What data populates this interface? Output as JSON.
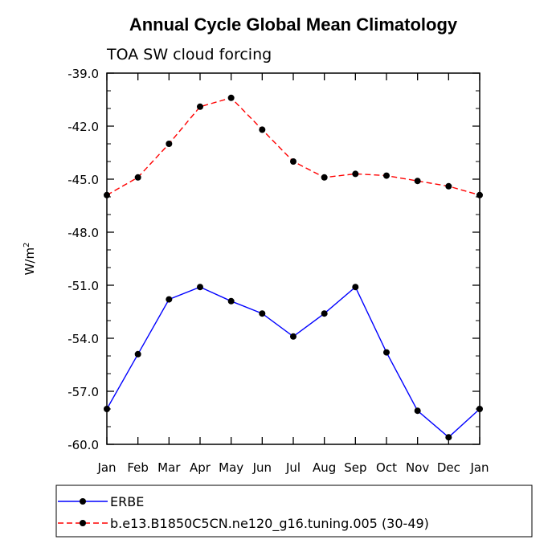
{
  "chart_data": {
    "type": "line",
    "title": "Annual Cycle Global Mean Climatology",
    "subtitle": "TOA SW cloud forcing",
    "ylabel": "W/m",
    "ylabel_superscript": "2",
    "xlabel": "",
    "categories": [
      "Jan",
      "Feb",
      "Mar",
      "Apr",
      "May",
      "Jun",
      "Jul",
      "Aug",
      "Sep",
      "Oct",
      "Nov",
      "Dec",
      "Jan"
    ],
    "ylim": [
      -60.0,
      -39.0
    ],
    "yticks": [
      "-39.0",
      "-42.0",
      "-45.0",
      "-48.0",
      "-51.0",
      "-54.0",
      "-57.0",
      "-60.0"
    ],
    "ytick_values": [
      -39.0,
      -42.0,
      -45.0,
      -48.0,
      -51.0,
      -54.0,
      -57.0,
      -60.0
    ],
    "series": [
      {
        "name": "ERBE",
        "color": "#0000ff",
        "style": "solid",
        "values": [
          -58.0,
          -54.9,
          -51.8,
          -51.1,
          -51.9,
          -52.6,
          -53.9,
          -52.6,
          -51.1,
          -54.8,
          -58.1,
          -59.6,
          -58.0
        ]
      },
      {
        "name": "b.e13.B1850C5CN.ne120_g16.tuning.005 (30-49)",
        "color": "#ff0000",
        "style": "dashed",
        "values": [
          -45.9,
          -44.9,
          -43.0,
          -40.9,
          -40.4,
          -42.2,
          -44.0,
          -44.9,
          -44.7,
          -44.8,
          -45.1,
          -45.4,
          -45.9
        ]
      }
    ],
    "legend_position": "bottom-left"
  }
}
